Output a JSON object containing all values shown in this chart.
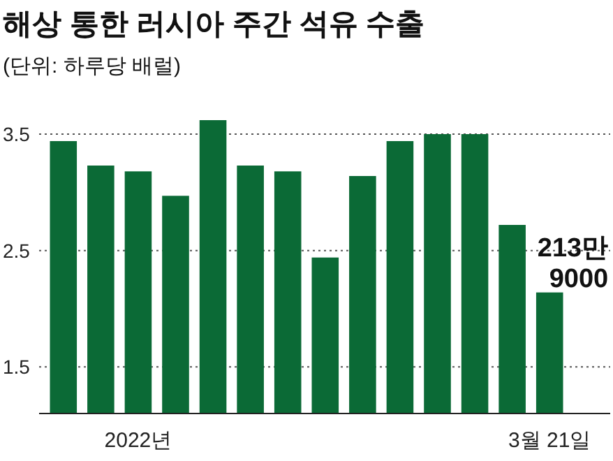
{
  "chart_data": {
    "type": "bar",
    "title": "해상 통한 러시아 주간 석유 수출",
    "subtitle": "(단위: 하루당 배럴)",
    "categories": [
      null,
      null,
      "2022년",
      null,
      null,
      null,
      null,
      null,
      null,
      null,
      null,
      null,
      null,
      "3월 21일"
    ],
    "values": [
      3.44,
      3.23,
      3.18,
      2.97,
      3.62,
      3.23,
      3.18,
      2.44,
      3.14,
      3.44,
      3.5,
      3.5,
      2.72,
      2.14
    ],
    "annotations": [
      {
        "text": "213만\n9000",
        "x": "3월 21일",
        "y": 2.14
      }
    ],
    "color": "#0b6a36",
    "ylim": [
      1.1,
      3.65
    ],
    "yticks": [
      1.5,
      2.5,
      3.5
    ],
    "grid": "y"
  }
}
